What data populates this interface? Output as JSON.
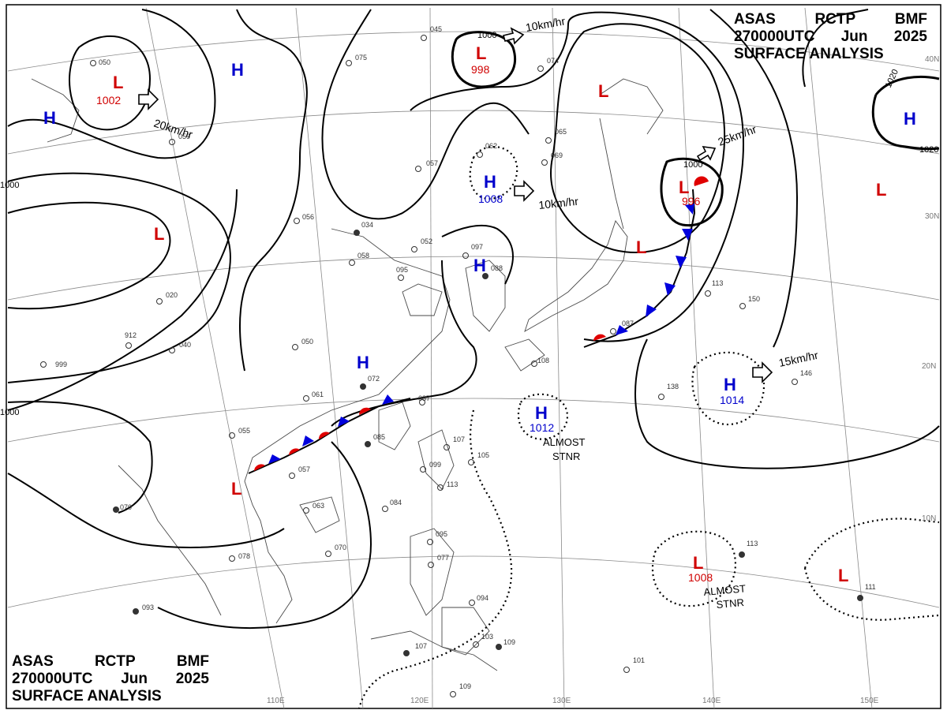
{
  "header": {
    "center": "ASAS",
    "station": "RCTP",
    "office": "BMF",
    "time": "270000UTC",
    "month": "Jun",
    "year": "2025",
    "product": "SURFACE ANALYSIS"
  },
  "longitude_labels": [
    "110E",
    "120E",
    "130E",
    "140E",
    "150E"
  ],
  "latitude_labels": [
    "40N",
    "30N",
    "20N",
    "10N"
  ],
  "isobar_labels": [
    "1000",
    "1000",
    "1000",
    "1000",
    "1020",
    "1020"
  ],
  "pressure_centers": [
    {
      "type": "L",
      "value": "1002",
      "color": "#d00000"
    },
    {
      "type": "L",
      "value": "998",
      "color": "#d00000"
    },
    {
      "type": "L",
      "value": "996",
      "color": "#d00000"
    },
    {
      "type": "L",
      "value": "1008",
      "color": "#d00000"
    },
    {
      "type": "H",
      "value": "1008",
      "color": "#0000cc"
    },
    {
      "type": "H",
      "value": "1012",
      "color": "#0000cc"
    },
    {
      "type": "H",
      "value": "1014",
      "color": "#0000cc"
    },
    {
      "type": "H",
      "value": "",
      "color": "#0000cc"
    },
    {
      "type": "L",
      "value": "",
      "color": "#d00000"
    }
  ],
  "motion_labels": [
    "20km/hr",
    "10km/hr",
    "10km/hr",
    "25km/hr",
    "15km/hr"
  ],
  "stationary_label_line1": "ALMOST",
  "stationary_label_line2": "STNR",
  "station_plots": [
    "050",
    "075",
    "045",
    "074",
    "065",
    "062",
    "057",
    "069",
    "059",
    "056",
    "034",
    "052",
    "097",
    "088",
    "058",
    "095",
    "020",
    "040",
    "912",
    "999",
    "050",
    "061",
    "072",
    "087",
    "085",
    "107",
    "105",
    "099",
    "113",
    "055",
    "057",
    "084",
    "063",
    "070",
    "078",
    "070",
    "093",
    "095",
    "077",
    "094",
    "107",
    "103",
    "109",
    "109",
    "101",
    "111",
    "113",
    "138",
    "146",
    "150",
    "113",
    "087",
    "108"
  ],
  "colors": {
    "high": "#0000cc",
    "low": "#d00000",
    "cold_front": "#0000dd",
    "warm_front": "#e00000",
    "isobar": "#000000",
    "coast": "#444444",
    "grid": "#888888"
  }
}
